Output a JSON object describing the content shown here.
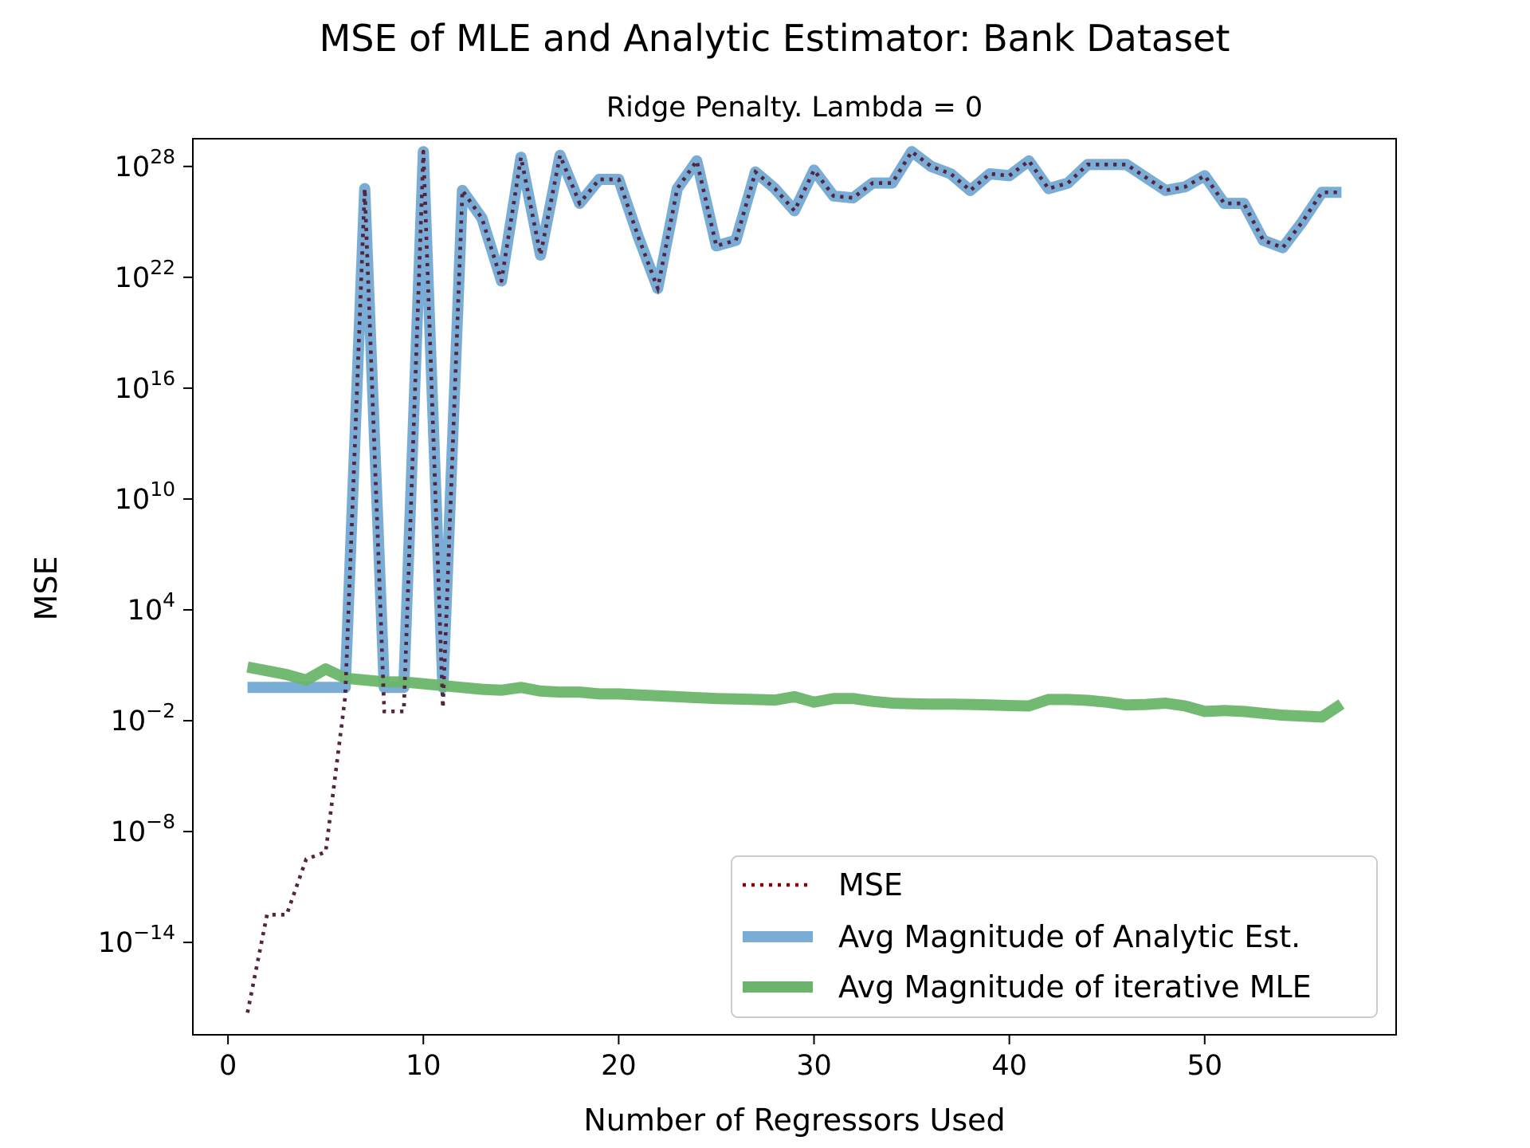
{
  "chart_data": {
    "type": "line",
    "title": "MSE of MLE and Analytic Estimator: Bank Dataset",
    "subtitle": "Ridge Penalty. Lambda = 0",
    "xlabel": "Number of Regressors Used",
    "ylabel": "MSE",
    "yscale": "log",
    "xlim": [
      -1.8,
      59.8
    ],
    "ylim_exp": [
      -19,
      29.5
    ],
    "x_ticks": [
      0,
      10,
      20,
      30,
      40,
      50
    ],
    "x_tick_labels": [
      "0",
      "10",
      "20",
      "30",
      "40",
      "50"
    ],
    "y_ticks_exp": [
      -14,
      -8,
      -2,
      4,
      10,
      16,
      22,
      28
    ],
    "y_tick_bases": [
      "10",
      "10",
      "10",
      "10",
      "10",
      "10",
      "10",
      "10"
    ],
    "y_tick_exponents": [
      "−14",
      "−8",
      "−2",
      "4",
      "10",
      "16",
      "22",
      "28"
    ],
    "legend_position": "lower right",
    "x": [
      1,
      2,
      3,
      4,
      5,
      6,
      7,
      8,
      9,
      10,
      11,
      12,
      13,
      14,
      15,
      16,
      17,
      18,
      19,
      20,
      21,
      22,
      23,
      24,
      25,
      26,
      27,
      28,
      29,
      30,
      31,
      32,
      33,
      34,
      35,
      36,
      37,
      38,
      39,
      40,
      41,
      42,
      43,
      44,
      45,
      46,
      47,
      48,
      49,
      50,
      51,
      52,
      53,
      54,
      55,
      56,
      57
    ],
    "series": [
      {
        "name": "MSE",
        "color": "#8b0000",
        "style": "dotted",
        "log10_values": [
          -17.8,
          -12.5,
          -12.5,
          -9.5,
          -9.1,
          -0.7,
          26.8,
          -1.5,
          -1.5,
          28.8,
          -1.3,
          26.7,
          25.2,
          21.8,
          28.5,
          23.2,
          28.6,
          26.0,
          27.3,
          27.3,
          24.2,
          21.4,
          26.8,
          28.3,
          23.7,
          24.0,
          27.7,
          26.8,
          25.6,
          27.8,
          26.4,
          26.3,
          27.1,
          27.1,
          28.8,
          28.0,
          27.6,
          26.7,
          27.6,
          27.5,
          28.3,
          26.8,
          27.1,
          28.1,
          28.1,
          28.1,
          27.4,
          26.7,
          26.9,
          27.5,
          26.0,
          26.0,
          24.0,
          23.6,
          25.0,
          26.6,
          26.6
        ]
      },
      {
        "name": "Avg Magnitude of Analytic Est.",
        "color": "#7aadd6",
        "style": "solid",
        "log10_values": [
          -0.2,
          -0.2,
          -0.2,
          -0.2,
          -0.2,
          -0.2,
          26.8,
          -0.2,
          -0.2,
          28.8,
          -0.2,
          26.7,
          25.2,
          21.8,
          28.5,
          23.2,
          28.6,
          26.0,
          27.3,
          27.3,
          24.2,
          21.4,
          26.8,
          28.3,
          23.7,
          24.0,
          27.7,
          26.8,
          25.6,
          27.8,
          26.4,
          26.3,
          27.1,
          27.1,
          28.8,
          28.0,
          27.6,
          26.7,
          27.6,
          27.5,
          28.3,
          26.8,
          27.1,
          28.1,
          28.1,
          28.1,
          27.4,
          26.7,
          26.9,
          27.5,
          26.0,
          26.0,
          24.0,
          23.6,
          25.0,
          26.6,
          26.6
        ]
      },
      {
        "name": "Avg Magnitude of iterative MLE",
        "color": "#6ab56a",
        "style": "solid",
        "log10_values": [
          0.9,
          0.7,
          0.5,
          0.2,
          0.8,
          0.3,
          0.2,
          0.1,
          0.1,
          0.0,
          -0.1,
          -0.2,
          -0.3,
          -0.35,
          -0.2,
          -0.4,
          -0.45,
          -0.45,
          -0.55,
          -0.55,
          -0.6,
          -0.65,
          -0.7,
          -0.75,
          -0.8,
          -0.82,
          -0.85,
          -0.88,
          -0.7,
          -1.0,
          -0.8,
          -0.8,
          -0.95,
          -1.05,
          -1.08,
          -1.1,
          -1.1,
          -1.12,
          -1.15,
          -1.18,
          -1.2,
          -0.85,
          -0.85,
          -0.9,
          -1.0,
          -1.15,
          -1.12,
          -1.05,
          -1.2,
          -1.5,
          -1.45,
          -1.5,
          -1.6,
          -1.7,
          -1.75,
          -1.8,
          -1.1
        ]
      }
    ]
  }
}
